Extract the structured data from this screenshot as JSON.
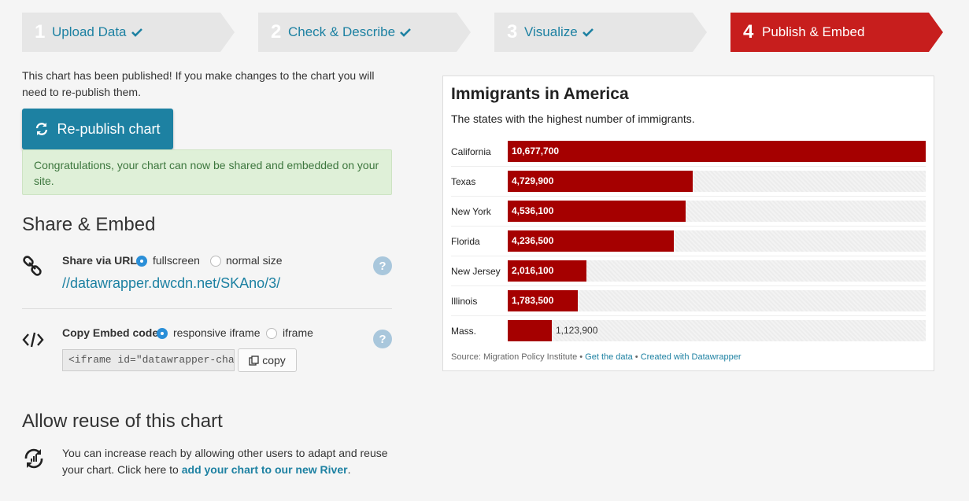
{
  "steps": [
    {
      "num": "1",
      "label": "Upload Data",
      "done": true
    },
    {
      "num": "2",
      "label": "Check & Describe",
      "done": true
    },
    {
      "num": "3",
      "label": "Visualize",
      "done": true
    },
    {
      "num": "4",
      "label": "Publish & Embed",
      "active": true
    }
  ],
  "publish": {
    "message": "This chart has been published! If you make changes to the chart you will need to re-publish them.",
    "republish_label": "Re-publish chart",
    "success_message": "Congratulations, your chart can now be shared and embedded on your site."
  },
  "share": {
    "title": "Share & Embed",
    "url_label": "Share via URL",
    "url_options": [
      "fullscreen",
      "normal size"
    ],
    "url_selected": "fullscreen",
    "url": "//datawrapper.dwcdn.net/SKAno/3/",
    "embed_label": "Copy Embed code",
    "embed_options": [
      "responsive iframe",
      "iframe"
    ],
    "embed_selected": "responsive iframe",
    "embed_code": "<iframe id=\"datawrapper-chart-SK",
    "copy_label": "copy",
    "help": "?"
  },
  "reuse": {
    "title": "Allow reuse of this chart",
    "text": "You can increase reach by allowing other users to adapt and reuse your chart. Click here to ",
    "link": "add your chart to our new River",
    "text_end": "."
  },
  "chart_data": {
    "type": "bar",
    "title": "Immigrants in America",
    "subtitle": "The states with the highest number of immigrants.",
    "categories": [
      "California",
      "Texas",
      "New York",
      "Florida",
      "New Jersey",
      "Illinois",
      "Mass."
    ],
    "values": [
      10677700,
      4729900,
      4536100,
      4236500,
      2016100,
      1783500,
      1123900
    ],
    "value_labels": [
      "10,677,700",
      "4,729,900",
      "4,536,100",
      "4,236,500",
      "2,016,100",
      "1,783,500",
      "1,123,900"
    ],
    "xlim": [
      0,
      10677700
    ],
    "bar_color": "#a50000",
    "source_prefix": "Source: Migration Policy Institute",
    "separator": "•",
    "get_data": "Get the data",
    "created_with": "Created with Datawrapper"
  },
  "colors": {
    "accent": "#1d81a2",
    "active_step": "#c71e1d",
    "success_bg": "#dff0d8"
  }
}
